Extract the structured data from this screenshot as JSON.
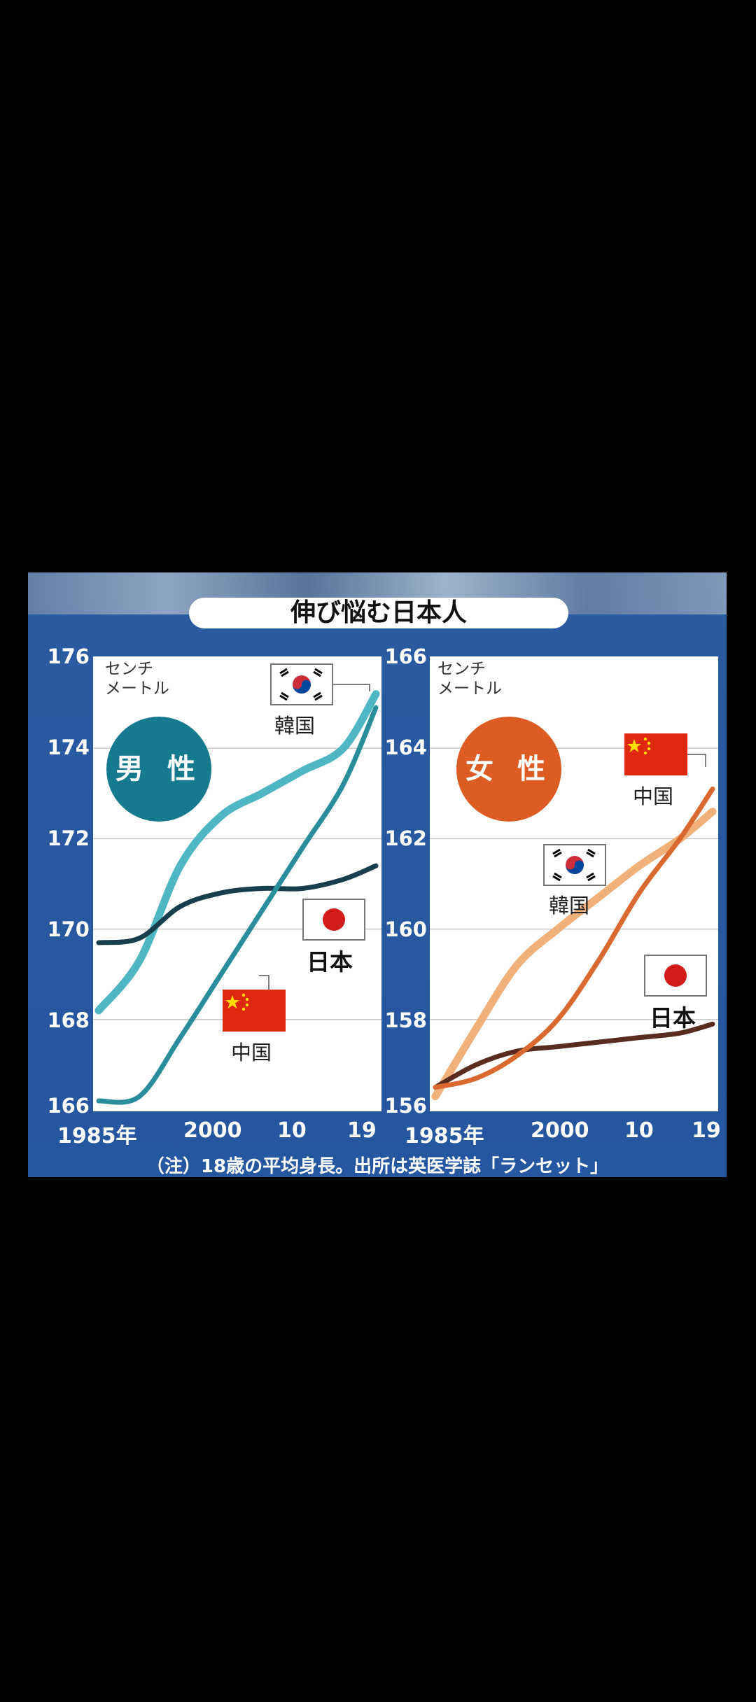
{
  "title": "伸び悩む日本人",
  "note": "（注）18歳の平均身長。出所は英医学誌「ランセット」",
  "colors": {
    "male_korea": "#4fb6c4",
    "male_china": "#2a8d9c",
    "male_japan": "#173e4c",
    "female_korea": "#f0b07a",
    "female_china": "#d9692f",
    "female_japan": "#5a2c20",
    "male_badge": "#157a8e",
    "female_badge": "#dc5c24"
  },
  "chart_data": [
    {
      "type": "line",
      "badge": "男 性",
      "unit": "センチ\nメートル",
      "x": [
        1985,
        1990,
        1995,
        2000,
        2005,
        2010,
        2015,
        2019
      ],
      "xticks": [
        "1985年",
        "2000",
        "10",
        "19"
      ],
      "yticks": [
        "176",
        "174",
        "172",
        "170",
        "168",
        "166"
      ],
      "ylim": [
        166,
        176
      ],
      "series": [
        {
          "name": "韓国",
          "values": [
            168.2,
            169.3,
            171.4,
            172.5,
            173.0,
            173.5,
            174.0,
            175.2
          ]
        },
        {
          "name": "日本",
          "values": [
            169.7,
            169.8,
            170.5,
            170.8,
            170.9,
            170.9,
            171.1,
            171.4
          ]
        },
        {
          "name": "中国",
          "values": [
            166.2,
            166.3,
            167.6,
            169.0,
            170.4,
            171.8,
            173.2,
            174.9
          ]
        }
      ]
    },
    {
      "type": "line",
      "badge": "女 性",
      "unit": "センチ\nメートル",
      "x": [
        1985,
        1990,
        1995,
        2000,
        2005,
        2010,
        2015,
        2019
      ],
      "xticks": [
        "1985年",
        "2000",
        "10",
        "19"
      ],
      "yticks": [
        "166",
        "164",
        "162",
        "160",
        "158",
        "156"
      ],
      "ylim": [
        156,
        166
      ],
      "series": [
        {
          "name": "韓国",
          "values": [
            156.3,
            157.8,
            159.2,
            160.0,
            160.7,
            161.4,
            162.0,
            162.6
          ]
        },
        {
          "name": "日本",
          "values": [
            156.5,
            157.0,
            157.3,
            157.4,
            157.5,
            157.6,
            157.7,
            157.9
          ]
        },
        {
          "name": "中国",
          "values": [
            156.5,
            156.7,
            157.2,
            158.0,
            159.3,
            160.8,
            162.0,
            163.1
          ]
        }
      ]
    }
  ]
}
